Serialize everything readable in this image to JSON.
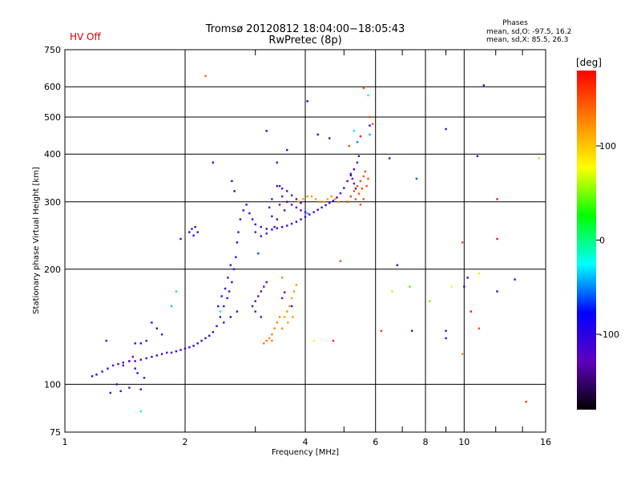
{
  "status": "HV Off",
  "colors": {
    "status": "#e00000",
    "grid": "#000000"
  },
  "chart_data": {
    "type": "scatter",
    "title": "Tromsø 20120812 18:04:00−18:05:43",
    "subtitle": "RwPretec (8p)",
    "xlabel": "Frequency [MHz]",
    "ylabel": "Stationary phase Virtual Height [km]",
    "xscale": "log",
    "yscale": "log",
    "xlim": [
      1,
      16
    ],
    "ylim": [
      75,
      750
    ],
    "x_ticks": [
      1,
      2,
      4,
      6,
      8,
      10,
      16
    ],
    "x_minor_ticks": [
      3,
      5,
      7,
      9,
      12,
      14
    ],
    "y_ticks": [
      75,
      100,
      200,
      300,
      400,
      500,
      600,
      750
    ],
    "grid": true,
    "phases_info": {
      "title": "Phases",
      "o_line": "mean, sd,O: -97.5, 16.2",
      "x_line": "mean, sd,X:  85.5, 26.3"
    },
    "colorbar": {
      "label": "[deg]",
      "range": [
        -180,
        180
      ],
      "ticks": [
        100,
        0,
        -100
      ],
      "colors": [
        "#ff0000",
        "#ff8000",
        "#ffff00",
        "#00ff00",
        "#00ffff",
        "#0000ff",
        "#6000c0",
        "#000000"
      ]
    },
    "series": [
      {
        "role": "blue_trace",
        "points": [
          [
            1.17,
            105,
            -110
          ],
          [
            1.2,
            106,
            -108
          ],
          [
            1.24,
            108,
            -112
          ],
          [
            1.28,
            110,
            -105
          ],
          [
            1.32,
            112,
            -110
          ],
          [
            1.36,
            113,
            -115
          ],
          [
            1.4,
            114,
            -108
          ],
          [
            1.45,
            115,
            -112
          ],
          [
            1.5,
            115,
            -106
          ],
          [
            1.55,
            116,
            -110
          ],
          [
            1.6,
            117,
            -112
          ],
          [
            1.65,
            118,
            -108
          ],
          [
            1.7,
            119,
            -110
          ],
          [
            1.75,
            120,
            -106
          ],
          [
            1.8,
            121,
            -112
          ],
          [
            1.85,
            121,
            -108
          ],
          [
            1.9,
            122,
            -110
          ],
          [
            1.95,
            123,
            -112
          ],
          [
            2.0,
            124,
            -108
          ],
          [
            2.05,
            125,
            -110
          ],
          [
            2.1,
            126,
            -106
          ],
          [
            2.15,
            128,
            -112
          ],
          [
            2.2,
            130,
            -108
          ],
          [
            2.25,
            132,
            -110
          ],
          [
            2.3,
            134,
            -112
          ],
          [
            2.35,
            137,
            -108
          ],
          [
            2.4,
            142,
            -110
          ],
          [
            2.45,
            150,
            -106
          ],
          [
            2.5,
            160,
            -112
          ],
          [
            2.55,
            168,
            -108
          ],
          [
            2.58,
            175,
            -110
          ],
          [
            2.62,
            185,
            -112
          ],
          [
            2.65,
            200,
            -108
          ],
          [
            2.68,
            215,
            -110
          ],
          [
            2.7,
            235,
            -106
          ],
          [
            2.72,
            250,
            -112
          ],
          [
            2.75,
            270,
            -108
          ],
          [
            2.8,
            285,
            -110
          ],
          [
            2.85,
            295,
            -112
          ],
          [
            2.42,
            160,
            -108
          ],
          [
            2.47,
            170,
            -110
          ],
          [
            2.52,
            178,
            -112
          ],
          [
            2.56,
            190,
            -108
          ],
          [
            2.6,
            205,
            -110
          ],
          [
            2.5,
            145,
            -106
          ],
          [
            2.6,
            150,
            -112
          ],
          [
            2.7,
            155,
            -108
          ],
          [
            2.62,
            340,
            -110
          ],
          [
            2.66,
            320,
            -112
          ],
          [
            2.9,
            280,
            -108
          ],
          [
            2.95,
            270,
            -110
          ],
          [
            3.0,
            262,
            -112
          ],
          [
            3.1,
            258,
            -108
          ],
          [
            3.2,
            255,
            -110
          ],
          [
            3.3,
            254,
            -106
          ],
          [
            3.4,
            256,
            -112
          ],
          [
            3.5,
            258,
            -108
          ],
          [
            3.6,
            260,
            -110
          ],
          [
            3.7,
            263,
            -112
          ],
          [
            3.8,
            266,
            -108
          ],
          [
            3.9,
            270,
            -110
          ],
          [
            4.0,
            274,
            -106
          ],
          [
            4.1,
            278,
            -112
          ],
          [
            4.2,
            282,
            -108
          ],
          [
            4.3,
            286,
            -110
          ],
          [
            4.4,
            290,
            -112
          ],
          [
            4.5,
            294,
            -108
          ],
          [
            4.6,
            298,
            -110
          ],
          [
            4.7,
            302,
            -106
          ],
          [
            4.8,
            308,
            -112
          ],
          [
            4.9,
            316,
            -108
          ],
          [
            5.0,
            326,
            -110
          ],
          [
            5.1,
            340,
            -112
          ],
          [
            5.2,
            352,
            -108
          ],
          [
            5.3,
            365,
            -110
          ],
          [
            5.4,
            380,
            -106
          ],
          [
            5.45,
            395,
            -112
          ],
          [
            2.05,
            250,
            -108
          ],
          [
            2.1,
            245,
            -110
          ],
          [
            2.08,
            255,
            -112
          ],
          [
            2.12,
            258,
            -108
          ],
          [
            2.15,
            250,
            -110
          ],
          [
            1.95,
            240,
            -112
          ],
          [
            2.35,
            380,
            -108
          ],
          [
            1.65,
            145,
            -110
          ],
          [
            1.7,
            140,
            -112
          ],
          [
            1.75,
            135,
            -108
          ],
          [
            1.6,
            130,
            -110
          ],
          [
            1.55,
            128,
            -112
          ],
          [
            1.5,
            110,
            -108
          ],
          [
            1.52,
            107,
            -110
          ],
          [
            1.58,
            104,
            -112
          ],
          [
            1.3,
            95,
            -108
          ],
          [
            1.38,
            96,
            -110
          ],
          [
            1.55,
            97,
            -112
          ],
          [
            1.27,
            130,
            -108
          ],
          [
            4.05,
            550,
            -110
          ],
          [
            3.2,
            460,
            -112
          ],
          [
            4.3,
            450,
            -108
          ],
          [
            4.6,
            440,
            -110
          ],
          [
            6.5,
            390,
            -112
          ],
          [
            6.8,
            205,
            -108
          ],
          [
            7.4,
            138,
            -110
          ],
          [
            9.0,
            465,
            -112
          ],
          [
            9.0,
            138,
            -108
          ],
          [
            9.0,
            132,
            -110
          ],
          [
            10.8,
            395,
            -112
          ],
          [
            10.2,
            190,
            -108
          ],
          [
            10.0,
            180,
            -110
          ],
          [
            11.2,
            605,
            -112
          ],
          [
            12.1,
            175,
            -108
          ],
          [
            13.4,
            188,
            -110
          ],
          [
            5.8,
            475,
            -112
          ],
          [
            3.7,
            160,
            -108
          ],
          [
            1.5,
            128,
            -110
          ]
        ]
      },
      {
        "role": "purple_trace",
        "points": [
          [
            3.4,
            330,
            -125
          ],
          [
            3.5,
            325,
            -122
          ],
          [
            3.6,
            320,
            -128
          ],
          [
            3.7,
            312,
            -124
          ],
          [
            3.8,
            305,
            -126
          ],
          [
            3.9,
            298,
            -122
          ],
          [
            3.5,
            310,
            -128
          ],
          [
            3.6,
            300,
            -124
          ],
          [
            3.7,
            295,
            -126
          ],
          [
            3.8,
            290,
            -122
          ],
          [
            3.9,
            285,
            -128
          ],
          [
            4.0,
            282,
            -124
          ],
          [
            3.45,
            295,
            -126
          ],
          [
            3.55,
            285,
            -122
          ],
          [
            3.3,
            305,
            -128
          ],
          [
            3.25,
            290,
            -124
          ],
          [
            3.3,
            275,
            -126
          ],
          [
            3.4,
            270,
            -122
          ],
          [
            3.35,
            258,
            -128
          ],
          [
            3.2,
            248,
            -124
          ],
          [
            3.1,
            244,
            -126
          ],
          [
            3.0,
            250,
            -122
          ],
          [
            2.95,
            160,
            -128
          ],
          [
            3.0,
            165,
            -124
          ],
          [
            3.05,
            170,
            -126
          ],
          [
            3.1,
            175,
            -122
          ],
          [
            3.15,
            180,
            -128
          ],
          [
            3.2,
            185,
            -124
          ],
          [
            3.0,
            155,
            -126
          ],
          [
            3.1,
            150,
            -122
          ],
          [
            3.45,
            330,
            -128
          ],
          [
            5.2,
            355,
            -124
          ],
          [
            5.25,
            345,
            -126
          ],
          [
            5.3,
            335,
            -122
          ],
          [
            5.35,
            325,
            -128
          ],
          [
            3.4,
            380,
            -124
          ],
          [
            3.6,
            410,
            -126
          ],
          [
            1.45,
            115,
            -128
          ],
          [
            1.4,
            112,
            -124
          ],
          [
            1.48,
            118,
            -126
          ],
          [
            1.35,
            100,
            -122
          ],
          [
            1.45,
            98,
            -128
          ],
          [
            3.55,
            174,
            -124
          ],
          [
            3.5,
            168,
            -126
          ]
        ]
      },
      {
        "role": "yellow_trace",
        "points": [
          [
            3.2,
            130,
            130
          ],
          [
            3.25,
            132,
            128
          ],
          [
            3.3,
            135,
            132
          ],
          [
            3.35,
            140,
            130
          ],
          [
            3.4,
            145,
            128
          ],
          [
            3.45,
            150,
            125
          ],
          [
            3.55,
            150,
            118
          ],
          [
            3.6,
            155,
            122
          ],
          [
            3.65,
            160,
            120
          ],
          [
            3.7,
            168,
            118
          ],
          [
            3.75,
            175,
            122
          ],
          [
            3.8,
            182,
            120
          ],
          [
            3.62,
            145,
            118
          ],
          [
            3.72,
            150,
            120
          ],
          [
            3.5,
            140,
            125
          ],
          [
            3.85,
            300,
            118
          ],
          [
            3.95,
            305,
            120
          ],
          [
            4.05,
            310,
            122
          ],
          [
            4.15,
            310,
            118
          ],
          [
            4.25,
            305,
            120
          ],
          [
            4.35,
            300,
            122
          ],
          [
            4.45,
            300,
            118
          ],
          [
            4.55,
            305,
            120
          ],
          [
            4.65,
            310,
            122
          ],
          [
            4.75,
            305,
            118
          ],
          [
            4.85,
            300,
            120
          ],
          [
            3.3,
            130,
            132
          ],
          [
            3.15,
            128,
            130
          ]
        ]
      },
      {
        "role": "orange_trace",
        "points": [
          [
            5.1,
            300,
            150
          ],
          [
            5.2,
            310,
            152
          ],
          [
            5.3,
            320,
            148
          ],
          [
            5.4,
            330,
            150
          ],
          [
            5.5,
            340,
            152
          ],
          [
            5.6,
            350,
            148
          ],
          [
            5.65,
            360,
            150
          ],
          [
            5.55,
            325,
            152
          ],
          [
            5.45,
            315,
            148
          ],
          [
            5.35,
            305,
            150
          ],
          [
            5.7,
            330,
            152
          ],
          [
            5.75,
            345,
            148
          ],
          [
            5.5,
            295,
            150
          ],
          [
            5.6,
            305,
            152
          ],
          [
            5.8,
            500,
            150
          ],
          [
            5.9,
            480,
            148
          ],
          [
            4.9,
            210,
            152
          ],
          [
            5.6,
            595,
            148
          ]
        ]
      },
      {
        "role": "scattered_outliers",
        "points": [
          [
            2.25,
            640,
            140
          ],
          [
            5.75,
            570,
            -20
          ],
          [
            5.8,
            450,
            -40
          ],
          [
            5.3,
            460,
            -30
          ],
          [
            5.4,
            430,
            -50
          ],
          [
            6.6,
            175,
            60
          ],
          [
            7.3,
            180,
            40
          ],
          [
            8.2,
            165,
            50
          ],
          [
            7.6,
            345,
            -60
          ],
          [
            9.3,
            180,
            80
          ],
          [
            9.9,
            120,
            120
          ],
          [
            9.9,
            235,
            150
          ],
          [
            10.4,
            155,
            170
          ],
          [
            12.1,
            240,
            175
          ],
          [
            12.1,
            305,
            170
          ],
          [
            14.3,
            90,
            160
          ],
          [
            15.4,
            390,
            100
          ],
          [
            10.9,
            195,
            70
          ],
          [
            10.9,
            140,
            150
          ],
          [
            6.2,
            138,
            160
          ],
          [
            1.55,
            85,
            -10
          ],
          [
            1.85,
            160,
            -40
          ],
          [
            1.9,
            175,
            10
          ],
          [
            2.45,
            155,
            -20
          ],
          [
            3.5,
            190,
            130
          ],
          [
            3.05,
            220,
            -60
          ],
          [
            4.2,
            130,
            80
          ],
          [
            4.7,
            130,
            170
          ],
          [
            5.15,
            420,
            150
          ],
          [
            5.5,
            445,
            175
          ],
          [
            4.05,
            280,
            -40
          ]
        ]
      }
    ]
  }
}
